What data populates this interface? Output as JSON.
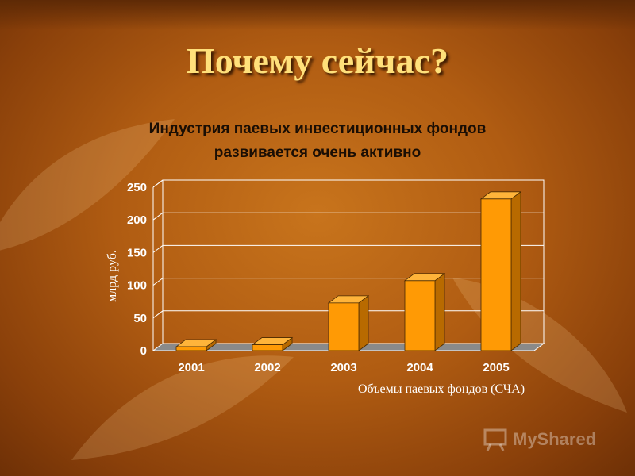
{
  "slide": {
    "title": "Почему сейчас?",
    "subtitle_line1": "Индустрия паевых инвестиционных фондов",
    "subtitle_line2": "развивается очень активно"
  },
  "watermark": {
    "text": "MyShared"
  },
  "colors": {
    "bar_front": "#ff9a05",
    "bar_side": "#b86a00",
    "bar_top": "#ffb43a",
    "floor": "#8a8a8a"
  },
  "chart_data": {
    "type": "bar",
    "title": "",
    "categories": [
      "2001",
      "2002",
      "2003",
      "2004",
      "2005"
    ],
    "series": [
      {
        "values": [
          6,
          9,
          73,
          107,
          232
        ]
      }
    ],
    "xlabel": "Объемы паевых фондов (СЧА)",
    "ylabel": "млрд руб.",
    "ylim": [
      0,
      250
    ],
    "yticks": [
      0,
      50,
      100,
      150,
      200,
      250
    ],
    "grid": true,
    "style": "3d"
  }
}
